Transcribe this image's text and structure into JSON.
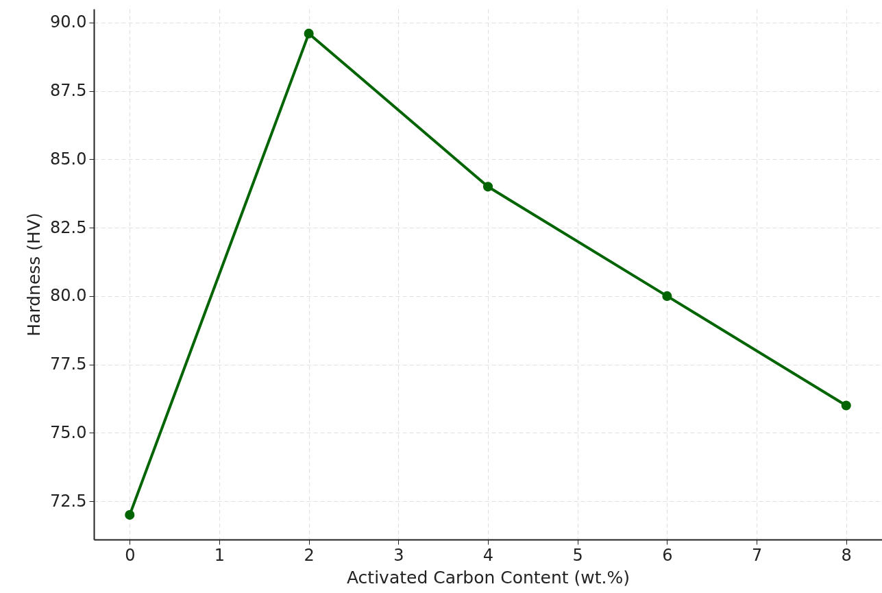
{
  "chart_data": {
    "type": "line",
    "xlabel": "Activated Carbon Content (wt.%)",
    "ylabel": "Hardness (HV)",
    "x": [
      0,
      2,
      4,
      6,
      8
    ],
    "series": [
      {
        "color": "#006400",
        "values": [
          72,
          89.6,
          84,
          80,
          76
        ]
      }
    ],
    "xlim": [
      -0.4,
      8.4
    ],
    "xticks": [
      0,
      1,
      2,
      3,
      4,
      5,
      6,
      7,
      8
    ],
    "ylim": [
      71.1,
      90.5
    ],
    "yticks": [
      {
        "value": 72.5,
        "label": "72.5"
      },
      {
        "value": 75,
        "label": "75.0"
      },
      {
        "value": 77.5,
        "label": "77.5"
      },
      {
        "value": 80,
        "label": "80.0"
      },
      {
        "value": 82.5,
        "label": "82.5"
      },
      {
        "value": 85,
        "label": "85.0"
      },
      {
        "value": 87.5,
        "label": "87.5"
      },
      {
        "value": 90,
        "label": "90.0"
      }
    ],
    "grid": true,
    "marker": "circle",
    "line_style": "solid"
  }
}
